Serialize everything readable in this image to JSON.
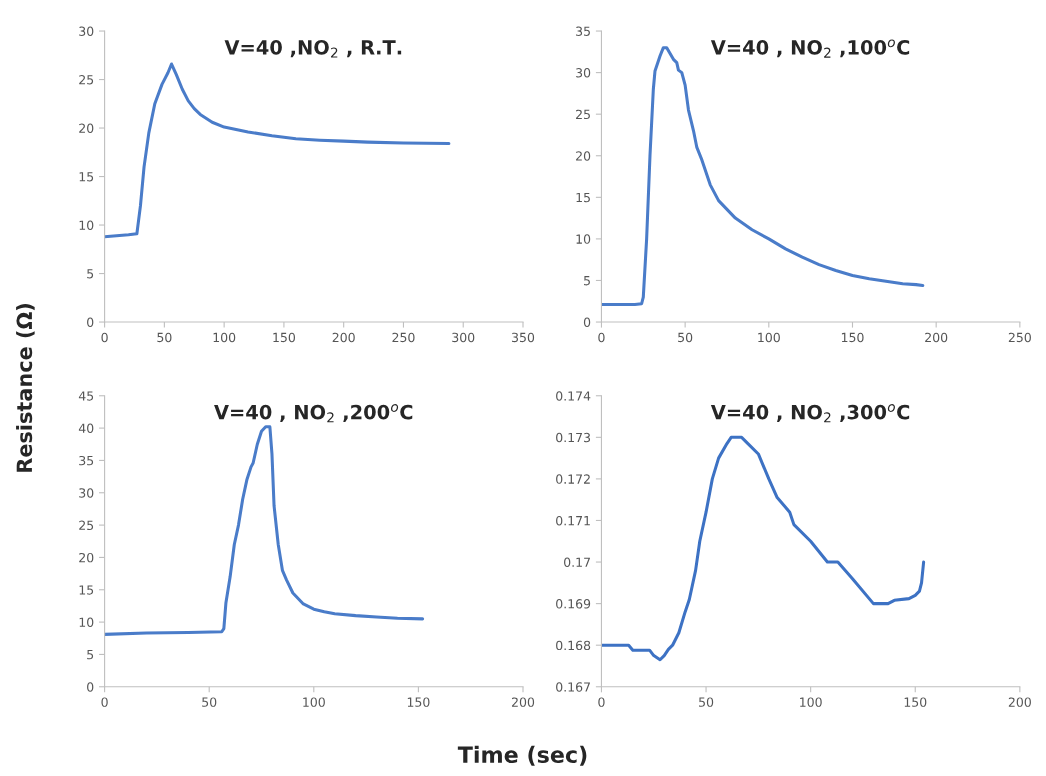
{
  "chart_data": [
    {
      "type": "line",
      "title": "V=40 ,NO$_{2}$ , R.T.",
      "ylabel": "Resistance (Ω)",
      "xlim": [
        0,
        350
      ],
      "xticks": [
        0,
        50,
        100,
        150,
        200,
        250,
        300,
        350
      ],
      "ylim": [
        0,
        30
      ],
      "yticks": [
        0,
        5,
        10,
        15,
        20,
        25,
        30
      ],
      "grid": false,
      "legend": false,
      "series": [
        {
          "color": "#4a7cc9",
          "x": [
            0,
            10,
            20,
            27,
            30,
            33,
            37,
            42,
            48,
            53,
            56,
            60,
            65,
            70,
            75,
            80,
            90,
            100,
            120,
            140,
            160,
            180,
            200,
            220,
            250,
            288
          ],
          "values": [
            8.8,
            8.9,
            9.0,
            9.1,
            12,
            16,
            19.5,
            22.5,
            24.5,
            25.7,
            26.6,
            25.5,
            24,
            22.8,
            22,
            21.4,
            20.6,
            20.1,
            19.6,
            19.2,
            18.9,
            18.75,
            18.65,
            18.55,
            18.45,
            18.4
          ]
        }
      ]
    },
    {
      "type": "line",
      "title": "V=40 , NO$_{2}$ ,100$^{o}$C",
      "xlim": [
        0,
        250
      ],
      "xticks": [
        0,
        50,
        100,
        150,
        200,
        250
      ],
      "ylim": [
        0,
        35
      ],
      "yticks": [
        0,
        5,
        10,
        15,
        20,
        25,
        30,
        35
      ],
      "grid": false,
      "legend": false,
      "series": [
        {
          "color": "#4a7cc9",
          "x": [
            0,
            10,
            20,
            24,
            25,
            27,
            29,
            31,
            32,
            35,
            37,
            39,
            41,
            43,
            45,
            46,
            48,
            50,
            52,
            55,
            57,
            60,
            65,
            70,
            80,
            90,
            100,
            110,
            120,
            130,
            140,
            150,
            160,
            170,
            180,
            188,
            192
          ],
          "values": [
            2.1,
            2.1,
            2.1,
            2.2,
            3,
            10,
            20,
            28,
            30.2,
            32,
            33,
            33,
            32.3,
            31.6,
            31.2,
            30.3,
            30,
            28.5,
            25.5,
            23,
            21,
            19.5,
            16.5,
            14.6,
            12.5,
            11.1,
            10,
            8.8,
            7.8,
            6.9,
            6.2,
            5.6,
            5.2,
            4.9,
            4.6,
            4.5,
            4.4
          ]
        }
      ]
    },
    {
      "type": "line",
      "title": "V=40 , NO$_{2}$ ,200$^{o}$C",
      "xlabel": "Time (sec)",
      "xlim": [
        0,
        200
      ],
      "xticks": [
        0,
        50,
        100,
        150,
        200
      ],
      "ylim": [
        0,
        45
      ],
      "yticks": [
        0,
        5,
        10,
        15,
        20,
        25,
        30,
        35,
        40,
        45
      ],
      "grid": false,
      "legend": false,
      "series": [
        {
          "color": "#4a7cc9",
          "x": [
            0,
            20,
            40,
            56,
            57,
            58,
            60,
            62,
            64,
            66,
            68,
            70,
            71,
            73,
            75,
            77,
            79,
            80,
            81,
            83,
            85,
            87,
            90,
            95,
            100,
            105,
            110,
            120,
            130,
            140,
            152
          ],
          "values": [
            8.1,
            8.3,
            8.4,
            8.5,
            9,
            13,
            17,
            22,
            25,
            29,
            32,
            34,
            34.6,
            37.5,
            39.5,
            40.2,
            40.2,
            36,
            28,
            22,
            18,
            16.5,
            14.5,
            12.8,
            12,
            11.6,
            11.3,
            11,
            10.8,
            10.6,
            10.5
          ]
        }
      ]
    },
    {
      "type": "line",
      "title": "V=40 , NO$_{2}$ ,300$^{o}$C",
      "xlim": [
        0,
        200
      ],
      "xticks": [
        0,
        50,
        100,
        150,
        200
      ],
      "ylim": [
        0.167,
        0.174
      ],
      "yticks": [
        0.167,
        0.168,
        0.169,
        0.17,
        0.171,
        0.172,
        0.173,
        0.174
      ],
      "grid": false,
      "legend": false,
      "series": [
        {
          "color": "#3d72c4",
          "x": [
            0,
            13,
            15,
            23,
            25,
            28,
            30,
            32,
            34,
            37,
            40,
            42,
            45,
            47,
            50,
            53,
            56,
            60,
            62,
            67,
            70,
            75,
            80,
            84,
            90,
            92,
            100,
            108,
            113,
            120,
            130,
            137,
            140,
            147,
            150,
            152,
            153,
            154
          ],
          "values": [
            0.168,
            0.168,
            0.16788,
            0.16788,
            0.16775,
            0.16765,
            0.16775,
            0.1679,
            0.168,
            0.1683,
            0.1688,
            0.1691,
            0.1698,
            0.1705,
            0.1712,
            0.172,
            0.1725,
            0.17285,
            0.173,
            0.173,
            0.17285,
            0.1726,
            0.172,
            0.17155,
            0.1712,
            0.1709,
            0.1705,
            0.17,
            0.17,
            0.1696,
            0.169,
            0.169,
            0.16908,
            0.16912,
            0.1692,
            0.1693,
            0.1695,
            0.17
          ]
        }
      ]
    }
  ]
}
